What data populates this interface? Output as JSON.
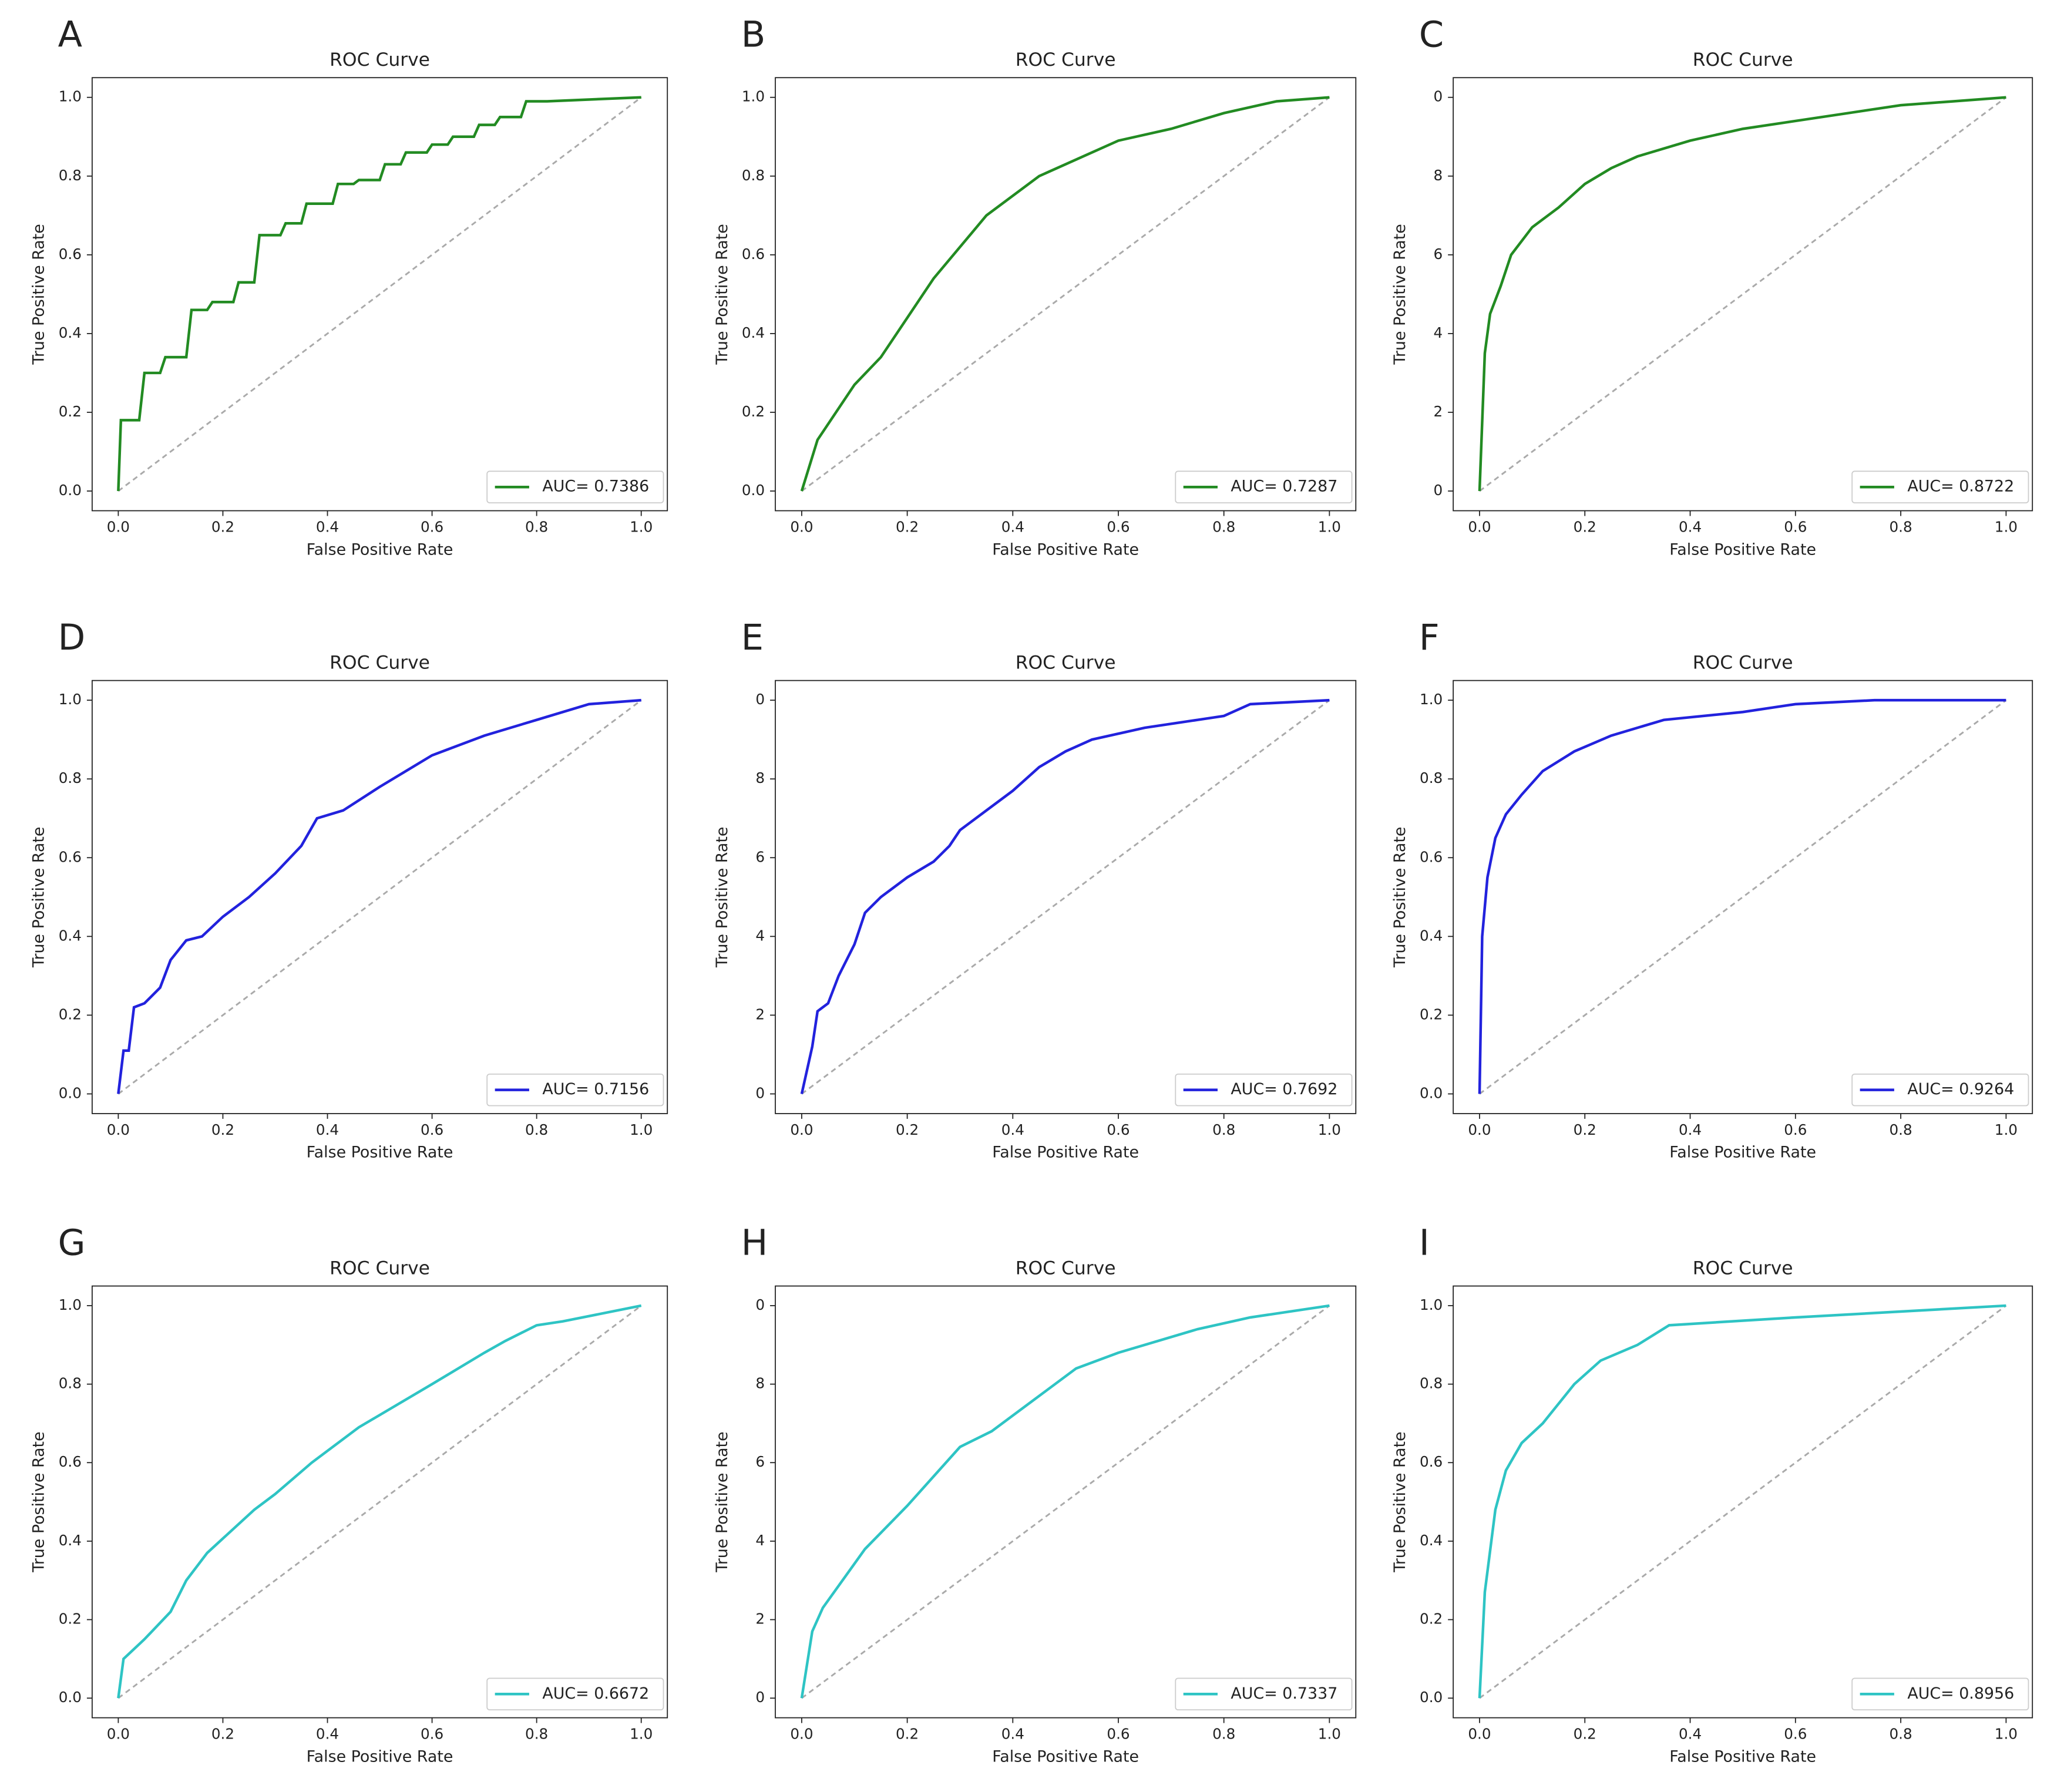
{
  "chart_data": [
    {
      "type": "line",
      "panel": "A",
      "title": "ROC Curve",
      "xlabel": "False Positive Rate",
      "ylabel": "True Positive Rate",
      "x": [
        0,
        0.005,
        0.04,
        0.05,
        0.08,
        0.09,
        0.13,
        0.14,
        0.17,
        0.18,
        0.22,
        0.23,
        0.26,
        0.27,
        0.31,
        0.32,
        0.35,
        0.36,
        0.41,
        0.42,
        0.45,
        0.46,
        0.5,
        0.51,
        0.54,
        0.55,
        0.59,
        0.6,
        0.63,
        0.64,
        0.68,
        0.69,
        0.72,
        0.73,
        0.77,
        0.78,
        0.82,
        1.0
      ],
      "series": [
        {
          "name": "AUC= 0.7386",
          "color": "#228b22",
          "values": [
            0,
            0.18,
            0.18,
            0.3,
            0.3,
            0.34,
            0.34,
            0.46,
            0.46,
            0.48,
            0.48,
            0.53,
            0.53,
            0.65,
            0.65,
            0.68,
            0.68,
            0.73,
            0.73,
            0.78,
            0.78,
            0.79,
            0.79,
            0.83,
            0.83,
            0.86,
            0.86,
            0.88,
            0.88,
            0.9,
            0.9,
            0.93,
            0.93,
            0.95,
            0.95,
            0.99,
            0.99,
            1.0
          ]
        }
      ],
      "xlim": [
        -0.05,
        1.05
      ],
      "ylim": [
        -0.05,
        1.05
      ],
      "xticks": [
        {
          "value": 0,
          "label": "0.0"
        },
        0.2,
        0.4,
        0.6,
        0.8,
        {
          "value": 1,
          "label": "1.0"
        }
      ],
      "yticks": [
        {
          "value": 0,
          "label": "0.0"
        },
        0.2,
        0.4,
        0.6,
        0.8,
        {
          "value": 1,
          "label": "1.0"
        }
      ],
      "legend": "lower right"
    },
    {
      "type": "line",
      "panel": "B",
      "title": "ROC Curve",
      "xlabel": "False Positive Rate",
      "ylabel": "True Positive Rate",
      "x": [
        0,
        0.03,
        0.07,
        0.1,
        0.15,
        0.2,
        0.25,
        0.3,
        0.35,
        0.4,
        0.45,
        0.5,
        0.55,
        0.6,
        0.7,
        0.8,
        0.9,
        1
      ],
      "series": [
        {
          "name": "AUC= 0.7287",
          "color": "#228b22",
          "values": [
            0,
            0.13,
            0.21,
            0.27,
            0.34,
            0.44,
            0.54,
            0.62,
            0.7,
            0.75,
            0.8,
            0.83,
            0.86,
            0.89,
            0.92,
            0.96,
            0.99,
            1
          ]
        }
      ],
      "xlim": [
        -0.05,
        1.05
      ],
      "ylim": [
        -0.05,
        1.05
      ],
      "xticks": [
        {
          "value": 0,
          "label": "0.0"
        },
        0.2,
        0.4,
        0.6,
        0.8,
        {
          "value": 1,
          "label": "1.0"
        }
      ],
      "yticks": [
        {
          "value": 0,
          "label": "0.0"
        },
        0.2,
        0.4,
        0.6,
        0.8,
        {
          "value": 1,
          "label": "1.0"
        }
      ],
      "legend": "lower right"
    },
    {
      "type": "line",
      "panel": "C",
      "title": "ROC Curve",
      "xlabel": "False Positive Rate",
      "ylabel": "True Positive Rate",
      "x": [
        0,
        0.01,
        0.02,
        0.04,
        0.06,
        0.1,
        0.15,
        0.2,
        0.25,
        0.3,
        0.4,
        0.5,
        0.6,
        0.7,
        0.8,
        0.9,
        1
      ],
      "series": [
        {
          "name": "AUC= 0.8722",
          "color": "#228b22",
          "values": [
            0,
            0.35,
            0.45,
            0.52,
            0.6,
            0.67,
            0.72,
            0.78,
            0.82,
            0.85,
            0.89,
            0.92,
            0.94,
            0.96,
            0.98,
            0.99,
            1
          ]
        }
      ],
      "xlim": [
        -0.05,
        1.05
      ],
      "ylim": [
        -0.05,
        1.05
      ],
      "xticks": [
        {
          "value": 0,
          "label": "0.0"
        },
        0.2,
        0.4,
        0.6,
        0.8,
        {
          "value": 1,
          "label": "1.0"
        }
      ],
      "yticks": [
        0,
        {
          "value": 0.2,
          "label": "2"
        },
        {
          "value": 0.4,
          "label": "4"
        },
        {
          "value": 0.6,
          "label": "6"
        },
        {
          "value": 0.8,
          "label": "8"
        },
        {
          "value": 1,
          "label": "0"
        }
      ],
      "legend": "lower right"
    },
    {
      "type": "line",
      "panel": "D",
      "title": "ROC Curve",
      "xlabel": "False Positive Rate",
      "ylabel": "True Positive Rate",
      "x": [
        0,
        0.01,
        0.02,
        0.03,
        0.05,
        0.08,
        0.1,
        0.13,
        0.16,
        0.2,
        0.25,
        0.3,
        0.35,
        0.38,
        0.43,
        0.5,
        0.55,
        0.6,
        0.7,
        0.8,
        0.9,
        1
      ],
      "series": [
        {
          "name": "AUC= 0.7156",
          "color": "#2222dd",
          "values": [
            0,
            0.11,
            0.11,
            0.22,
            0.23,
            0.27,
            0.34,
            0.39,
            0.4,
            0.45,
            0.5,
            0.56,
            0.63,
            0.7,
            0.72,
            0.78,
            0.82,
            0.86,
            0.91,
            0.95,
            0.99,
            1
          ]
        }
      ],
      "xlim": [
        -0.05,
        1.05
      ],
      "ylim": [
        -0.05,
        1.05
      ],
      "xticks": [
        {
          "value": 0,
          "label": "0.0"
        },
        0.2,
        0.4,
        0.6,
        0.8,
        {
          "value": 1,
          "label": "1.0"
        }
      ],
      "yticks": [
        {
          "value": 0,
          "label": "0.0"
        },
        0.2,
        0.4,
        0.6,
        0.8,
        {
          "value": 1,
          "label": "1.0"
        }
      ],
      "legend": "lower right"
    },
    {
      "type": "line",
      "panel": "E",
      "title": "ROC Curve",
      "xlabel": "False Positive Rate",
      "ylabel": "True Positive Rate",
      "x": [
        0,
        0.02,
        0.03,
        0.05,
        0.07,
        0.1,
        0.12,
        0.15,
        0.2,
        0.25,
        0.28,
        0.3,
        0.35,
        0.4,
        0.45,
        0.5,
        0.55,
        0.65,
        0.75,
        0.8,
        0.85,
        1
      ],
      "series": [
        {
          "name": "AUC= 0.7692",
          "color": "#2222dd",
          "values": [
            0,
            0.12,
            0.21,
            0.23,
            0.3,
            0.38,
            0.46,
            0.5,
            0.55,
            0.59,
            0.63,
            0.67,
            0.72,
            0.77,
            0.83,
            0.87,
            0.9,
            0.93,
            0.95,
            0.96,
            0.99,
            1
          ]
        }
      ],
      "xlim": [
        -0.05,
        1.05
      ],
      "ylim": [
        -0.05,
        1.05
      ],
      "xticks": [
        {
          "value": 0,
          "label": "0.0"
        },
        0.2,
        0.4,
        0.6,
        0.8,
        {
          "value": 1,
          "label": "1.0"
        }
      ],
      "yticks": [
        0,
        {
          "value": 0.2,
          "label": "2"
        },
        {
          "value": 0.4,
          "label": "4"
        },
        {
          "value": 0.6,
          "label": "6"
        },
        {
          "value": 0.8,
          "label": "8"
        },
        {
          "value": 1,
          "label": "0"
        }
      ],
      "legend": "lower right"
    },
    {
      "type": "line",
      "panel": "F",
      "title": "ROC Curve",
      "xlabel": "False Positive Rate",
      "ylabel": "True Positive Rate",
      "x": [
        0,
        0.005,
        0.015,
        0.03,
        0.05,
        0.08,
        0.12,
        0.18,
        0.25,
        0.35,
        0.5,
        0.6,
        0.75,
        1
      ],
      "series": [
        {
          "name": "AUC= 0.9264",
          "color": "#2222dd",
          "values": [
            0,
            0.4,
            0.55,
            0.65,
            0.71,
            0.76,
            0.82,
            0.87,
            0.91,
            0.95,
            0.97,
            0.99,
            1,
            1
          ]
        }
      ],
      "xlim": [
        -0.05,
        1.05
      ],
      "ylim": [
        -0.05,
        1.05
      ],
      "xticks": [
        {
          "value": 0,
          "label": "0.0"
        },
        0.2,
        0.4,
        0.6,
        0.8,
        {
          "value": 1,
          "label": "1.0"
        }
      ],
      "yticks": [
        {
          "value": 0,
          "label": "0.0"
        },
        0.2,
        0.4,
        0.6,
        0.8,
        {
          "value": 1,
          "label": "1.0"
        }
      ],
      "legend": "lower right"
    },
    {
      "type": "line",
      "panel": "G",
      "title": "ROC Curve",
      "xlabel": "False Positive Rate",
      "ylabel": "True Positive Rate",
      "x": [
        0,
        0.01,
        0.05,
        0.1,
        0.13,
        0.17,
        0.26,
        0.3,
        0.37,
        0.46,
        0.6,
        0.7,
        0.74,
        0.8,
        0.85,
        1
      ],
      "series": [
        {
          "name": "AUC= 0.6672",
          "color": "#2ec4c4",
          "values": [
            0,
            0.1,
            0.15,
            0.22,
            0.3,
            0.37,
            0.48,
            0.52,
            0.6,
            0.69,
            0.8,
            0.88,
            0.91,
            0.95,
            0.96,
            1
          ]
        }
      ],
      "xlim": [
        -0.05,
        1.05
      ],
      "ylim": [
        -0.05,
        1.05
      ],
      "xticks": [
        {
          "value": 0,
          "label": "0.0"
        },
        0.2,
        0.4,
        0.6,
        0.8,
        {
          "value": 1,
          "label": "1.0"
        }
      ],
      "yticks": [
        {
          "value": 0,
          "label": "0.0"
        },
        0.2,
        0.4,
        0.6,
        0.8,
        {
          "value": 1,
          "label": "1.0"
        }
      ],
      "legend": "lower right"
    },
    {
      "type": "line",
      "panel": "H",
      "title": "ROC Curve",
      "xlabel": "False Positive Rate",
      "ylabel": "True Positive Rate",
      "x": [
        0,
        0.02,
        0.04,
        0.12,
        0.2,
        0.3,
        0.36,
        0.44,
        0.52,
        0.6,
        0.75,
        0.85,
        1
      ],
      "series": [
        {
          "name": "AUC= 0.7337",
          "color": "#2ec4c4",
          "values": [
            0,
            0.17,
            0.23,
            0.38,
            0.49,
            0.64,
            0.68,
            0.76,
            0.84,
            0.88,
            0.94,
            0.97,
            1
          ]
        }
      ],
      "xlim": [
        -0.05,
        1.05
      ],
      "ylim": [
        -0.05,
        1.05
      ],
      "xticks": [
        {
          "value": 0,
          "label": "0.0"
        },
        0.2,
        0.4,
        0.6,
        0.8,
        {
          "value": 1,
          "label": "1.0"
        }
      ],
      "yticks": [
        0,
        {
          "value": 0.2,
          "label": "2"
        },
        {
          "value": 0.4,
          "label": "4"
        },
        {
          "value": 0.6,
          "label": "6"
        },
        {
          "value": 0.8,
          "label": "8"
        },
        {
          "value": 1,
          "label": "0"
        }
      ],
      "legend": "lower right"
    },
    {
      "type": "line",
      "panel": "I",
      "title": "ROC Curve",
      "xlabel": "False Positive Rate",
      "ylabel": "True Positive Rate",
      "x": [
        0,
        0.01,
        0.03,
        0.05,
        0.08,
        0.12,
        0.18,
        0.23,
        0.3,
        0.36,
        0.6,
        1
      ],
      "series": [
        {
          "name": "AUC= 0.8956",
          "color": "#2ec4c4",
          "values": [
            0,
            0.27,
            0.48,
            0.58,
            0.65,
            0.7,
            0.8,
            0.86,
            0.9,
            0.95,
            0.97,
            1
          ]
        }
      ],
      "xlim": [
        -0.05,
        1.05
      ],
      "ylim": [
        -0.05,
        1.05
      ],
      "xticks": [
        {
          "value": 0,
          "label": "0.0"
        },
        0.2,
        0.4,
        0.6,
        0.8,
        {
          "value": 1,
          "label": "1.0"
        }
      ],
      "yticks": [
        {
          "value": 0,
          "label": "0.0"
        },
        0.2,
        0.4,
        0.6,
        0.8,
        {
          "value": 1,
          "label": "1.0"
        }
      ],
      "legend": "lower right"
    }
  ]
}
